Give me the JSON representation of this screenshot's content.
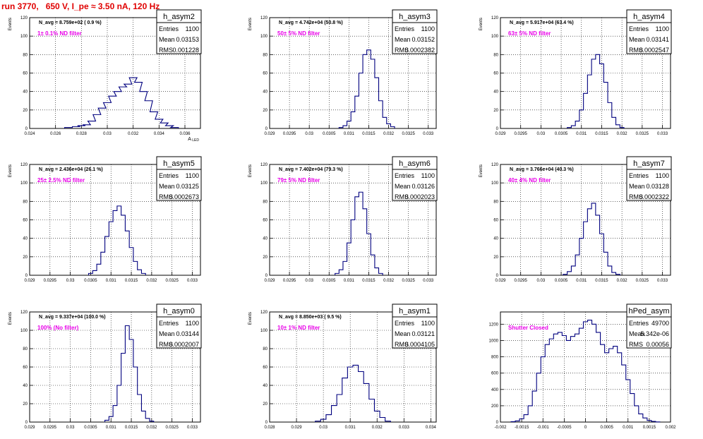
{
  "title": "run 3770,   650 V, I_pe ≈ 3.50 nA, 120 Hz",
  "colors": {
    "title": "#e00000",
    "hist": "#00007f",
    "annotation": "#e800e8",
    "grid": "#000000"
  },
  "chart_data": [
    {
      "type": "bar",
      "name": "h_asym2",
      "stats": {
        "entries": "1100",
        "mean": "0.03153",
        "rms": "0.001228"
      },
      "navg": "N_avg = 8.759e+02 ( 0.9 %)",
      "filter": "1± 0.1% ND filter",
      "xlabel": "A_LED",
      "ylabel": "Events",
      "xlim": [
        0.024,
        0.0372
      ],
      "ylim": [
        0,
        120
      ],
      "xticks": [
        0.024,
        0.026,
        0.028,
        0.03,
        0.032,
        0.034,
        0.036
      ],
      "xticklabels": [
        "0.024",
        "0.026",
        "0.028",
        "0.03",
        "0.032",
        "0.034",
        "0.036"
      ],
      "yticks": [
        0,
        20,
        40,
        60,
        80,
        100,
        120
      ],
      "bins": [
        [
          0.027,
          1
        ],
        [
          0.0276,
          2
        ],
        [
          0.028,
          3
        ],
        [
          0.0284,
          4
        ],
        [
          0.0288,
          8
        ],
        [
          0.0292,
          15
        ],
        [
          0.0296,
          22
        ],
        [
          0.03,
          28
        ],
        [
          0.0304,
          35
        ],
        [
          0.0308,
          40
        ],
        [
          0.0312,
          45
        ],
        [
          0.0316,
          48
        ],
        [
          0.032,
          55
        ],
        [
          0.0324,
          50
        ],
        [
          0.0328,
          40
        ],
        [
          0.0332,
          30
        ],
        [
          0.0336,
          18
        ],
        [
          0.034,
          10
        ],
        [
          0.0344,
          6
        ],
        [
          0.0348,
          3
        ],
        [
          0.0352,
          1
        ]
      ]
    },
    {
      "type": "bar",
      "name": "h_asym3",
      "stats": {
        "entries": "1100",
        "mean": "0.03152",
        "rms": "0.0002382"
      },
      "navg": "N_avg = 4.742e+04 (50.8 %)",
      "filter": "50± 5% ND filter",
      "xlabel": "",
      "ylabel": "Events",
      "xlim": [
        0.029,
        0.0332
      ],
      "ylim": [
        0,
        120
      ],
      "xticks": [
        0.029,
        0.0295,
        0.03,
        0.0305,
        0.031,
        0.0315,
        0.032,
        0.0325,
        0.033
      ],
      "xticklabels": [
        "0.029",
        "0.0295",
        "0.03",
        "0.0305",
        "0.031",
        "0.0315",
        "0.032",
        "0.0325",
        "0.033"
      ],
      "yticks": [
        0,
        20,
        40,
        60,
        80,
        100,
        120
      ],
      "bins": [
        [
          0.0308,
          1
        ],
        [
          0.0309,
          3
        ],
        [
          0.031,
          8
        ],
        [
          0.0311,
          18
        ],
        [
          0.0312,
          35
        ],
        [
          0.0313,
          60
        ],
        [
          0.0314,
          80
        ],
        [
          0.0315,
          85
        ],
        [
          0.0316,
          75
        ],
        [
          0.0317,
          55
        ],
        [
          0.0318,
          30
        ],
        [
          0.0319,
          12
        ],
        [
          0.032,
          5
        ],
        [
          0.0321,
          2
        ]
      ]
    },
    {
      "type": "bar",
      "name": "h_asym4",
      "stats": {
        "entries": "1100",
        "mean": "0.03141",
        "rms": "0.0002547"
      },
      "navg": "N_avg = 5.917e+04 (63.4 %)",
      "filter": "63± 5% ND filter",
      "xlabel": "",
      "ylabel": "Events",
      "xlim": [
        0.029,
        0.0332
      ],
      "ylim": [
        0,
        120
      ],
      "xticks": [
        0.029,
        0.0295,
        0.03,
        0.0305,
        0.031,
        0.0315,
        0.032,
        0.0325,
        0.033
      ],
      "xticklabels": [
        "0.029",
        "0.0295",
        "0.03",
        "0.0305",
        "0.031",
        "0.0315",
        "0.032",
        "0.0325",
        "0.033"
      ],
      "yticks": [
        0,
        20,
        40,
        60,
        80,
        100,
        120
      ],
      "bins": [
        [
          0.0307,
          1
        ],
        [
          0.0308,
          3
        ],
        [
          0.0309,
          8
        ],
        [
          0.031,
          20
        ],
        [
          0.0311,
          38
        ],
        [
          0.0312,
          58
        ],
        [
          0.0313,
          75
        ],
        [
          0.0314,
          80
        ],
        [
          0.0315,
          70
        ],
        [
          0.0316,
          50
        ],
        [
          0.0317,
          28
        ],
        [
          0.0318,
          12
        ],
        [
          0.0319,
          4
        ],
        [
          0.032,
          1
        ]
      ]
    },
    {
      "type": "bar",
      "name": "h_asym5",
      "stats": {
        "entries": "1100",
        "mean": "0.03125",
        "rms": "0.0002673"
      },
      "navg": "N_avg = 2.436e+04 (26.1 %)",
      "filter": "25± 2.5% ND filter",
      "xlabel": "",
      "ylabel": "Events",
      "xlim": [
        0.029,
        0.0332
      ],
      "ylim": [
        0,
        120
      ],
      "xticks": [
        0.029,
        0.0295,
        0.03,
        0.0305,
        0.031,
        0.0315,
        0.032,
        0.0325,
        0.033
      ],
      "xticklabels": [
        "0.029",
        "0.0295",
        "0.03",
        "0.0305",
        "0.031",
        "0.0315",
        "0.032",
        "0.0325",
        "0.033"
      ],
      "yticks": [
        0,
        20,
        40,
        60,
        80,
        100,
        120
      ],
      "bins": [
        [
          0.0305,
          2
        ],
        [
          0.0306,
          5
        ],
        [
          0.0307,
          12
        ],
        [
          0.0308,
          25
        ],
        [
          0.0309,
          42
        ],
        [
          0.031,
          58
        ],
        [
          0.0311,
          70
        ],
        [
          0.0312,
          75
        ],
        [
          0.0313,
          65
        ],
        [
          0.0314,
          48
        ],
        [
          0.0315,
          30
        ],
        [
          0.0316,
          15
        ],
        [
          0.0317,
          6
        ],
        [
          0.0318,
          2
        ]
      ]
    },
    {
      "type": "bar",
      "name": "h_asym6",
      "stats": {
        "entries": "1100",
        "mean": "0.03126",
        "rms": "0.0002023"
      },
      "navg": "N_avg = 7.402e+04 (79.3 %)",
      "filter": "79± 5% ND filter",
      "xlabel": "",
      "ylabel": "Events",
      "xlim": [
        0.029,
        0.0332
      ],
      "ylim": [
        0,
        120
      ],
      "xticks": [
        0.029,
        0.0295,
        0.03,
        0.0305,
        0.031,
        0.0315,
        0.032,
        0.0325,
        0.033
      ],
      "xticklabels": [
        "0.029",
        "0.0295",
        "0.03",
        "0.0305",
        "0.031",
        "0.0315",
        "0.032",
        "0.0325",
        "0.033"
      ],
      "yticks": [
        0,
        20,
        40,
        60,
        80,
        100,
        120
      ],
      "bins": [
        [
          0.0307,
          2
        ],
        [
          0.0308,
          6
        ],
        [
          0.0309,
          15
        ],
        [
          0.031,
          35
        ],
        [
          0.0311,
          60
        ],
        [
          0.0312,
          85
        ],
        [
          0.0313,
          90
        ],
        [
          0.0314,
          72
        ],
        [
          0.0315,
          45
        ],
        [
          0.0316,
          22
        ],
        [
          0.0317,
          8
        ],
        [
          0.0318,
          2
        ]
      ]
    },
    {
      "type": "bar",
      "name": "h_asym7",
      "stats": {
        "entries": "1100",
        "mean": "0.03128",
        "rms": "0.0002322"
      },
      "navg": "N_avg = 3.766e+04 (40.3 %)",
      "filter": "40± 4% ND filter",
      "xlabel": "",
      "ylabel": "Events",
      "xlim": [
        0.029,
        0.0332
      ],
      "ylim": [
        0,
        120
      ],
      "xticks": [
        0.029,
        0.0295,
        0.03,
        0.0305,
        0.031,
        0.0315,
        0.032,
        0.0325,
        0.033
      ],
      "xticklabels": [
        "0.029",
        "0.0295",
        "0.03",
        "0.0305",
        "0.031",
        "0.0315",
        "0.032",
        "0.0325",
        "0.033"
      ],
      "yticks": [
        0,
        20,
        40,
        60,
        80,
        100,
        120
      ],
      "bins": [
        [
          0.0306,
          1
        ],
        [
          0.0307,
          4
        ],
        [
          0.0308,
          10
        ],
        [
          0.0309,
          22
        ],
        [
          0.031,
          40
        ],
        [
          0.0311,
          58
        ],
        [
          0.0312,
          72
        ],
        [
          0.0313,
          78
        ],
        [
          0.0314,
          65
        ],
        [
          0.0315,
          45
        ],
        [
          0.0316,
          25
        ],
        [
          0.0317,
          10
        ],
        [
          0.0318,
          3
        ],
        [
          0.0319,
          1
        ]
      ]
    },
    {
      "type": "bar",
      "name": "h_asym0",
      "stats": {
        "entries": "1100",
        "mean": "0.03144",
        "rms": "0.0002007"
      },
      "navg": "N_avg = 9.337e+04 (100.0 %)",
      "filter": "100% (No filter)",
      "xlabel": "",
      "ylabel": "Events",
      "xlim": [
        0.029,
        0.0332
      ],
      "ylim": [
        0,
        120
      ],
      "xticks": [
        0.029,
        0.0295,
        0.03,
        0.0305,
        0.031,
        0.0315,
        0.032,
        0.0325,
        0.033
      ],
      "xticklabels": [
        "0.029",
        "0.0295",
        "0.03",
        "0.0305",
        "0.031",
        "0.0315",
        "0.032",
        "0.0325",
        "0.033"
      ],
      "yticks": [
        0,
        20,
        40,
        60,
        80,
        100,
        120
      ],
      "bins": [
        [
          0.0309,
          2
        ],
        [
          0.031,
          6
        ],
        [
          0.0311,
          18
        ],
        [
          0.0312,
          40
        ],
        [
          0.0313,
          75
        ],
        [
          0.0314,
          105
        ],
        [
          0.0315,
          90
        ],
        [
          0.0316,
          60
        ],
        [
          0.0317,
          30
        ],
        [
          0.0318,
          12
        ],
        [
          0.0319,
          4
        ],
        [
          0.032,
          1
        ]
      ]
    },
    {
      "type": "bar",
      "name": "h_asym1",
      "stats": {
        "entries": "1100",
        "mean": "0.03121",
        "rms": "0.0004105"
      },
      "navg": "N_avg = 8.850e+03 ( 9.5 %)",
      "filter": "10± 1% ND filter",
      "xlabel": "",
      "ylabel": "Events",
      "xlim": [
        0.028,
        0.0342
      ],
      "ylim": [
        0,
        120
      ],
      "xticks": [
        0.028,
        0.029,
        0.03,
        0.031,
        0.032,
        0.033,
        0.034
      ],
      "xticklabels": [
        "0.028",
        "0.029",
        "0.03",
        "0.031",
        "0.032",
        "0.033",
        "0.034"
      ],
      "yticks": [
        0,
        20,
        40,
        60,
        80,
        100,
        120
      ],
      "bins": [
        [
          0.0298,
          1
        ],
        [
          0.03,
          3
        ],
        [
          0.0302,
          8
        ],
        [
          0.0304,
          18
        ],
        [
          0.0306,
          30
        ],
        [
          0.0308,
          48
        ],
        [
          0.031,
          60
        ],
        [
          0.0312,
          62
        ],
        [
          0.0314,
          55
        ],
        [
          0.0316,
          42
        ],
        [
          0.0318,
          25
        ],
        [
          0.032,
          12
        ],
        [
          0.0322,
          5
        ],
        [
          0.0324,
          1
        ]
      ]
    },
    {
      "type": "bar",
      "name": "hPed_asym",
      "stats": {
        "entries": "49700",
        "mean": "5.342e-06",
        "rms": "0.00056"
      },
      "navg": "",
      "filter": "Shutter Closed",
      "xlabel": "",
      "ylabel": "",
      "xlim": [
        -0.002,
        0.002
      ],
      "ylim": [
        0,
        1350
      ],
      "xticks": [
        -0.002,
        -0.0015,
        -0.001,
        -0.0005,
        0,
        0.0005,
        0.001,
        0.0015,
        0.002
      ],
      "xticklabels": [
        "-0.002",
        "-0.0015",
        "-0.001",
        "-0.0005",
        "0",
        "0.0005",
        "0.001",
        "0.0015",
        "0.002"
      ],
      "yticks": [
        0,
        200,
        400,
        600,
        800,
        1000,
        1200
      ],
      "bins": [
        [
          -0.0017,
          5
        ],
        [
          -0.0016,
          15
        ],
        [
          -0.0015,
          40
        ],
        [
          -0.0014,
          90
        ],
        [
          -0.0013,
          200
        ],
        [
          -0.0012,
          380
        ],
        [
          -0.0011,
          600
        ],
        [
          -0.001,
          800
        ],
        [
          -0.0009,
          950
        ],
        [
          -0.0008,
          1020
        ],
        [
          -0.0007,
          1080
        ],
        [
          -0.0006,
          1100
        ],
        [
          -0.0005,
          1060
        ],
        [
          -0.0004,
          1000
        ],
        [
          -0.0003,
          1050
        ],
        [
          -0.0002,
          1080
        ],
        [
          -0.0001,
          1150
        ],
        [
          0.0,
          1230
        ],
        [
          0.0001,
          1250
        ],
        [
          0.0002,
          1200
        ],
        [
          0.0003,
          1100
        ],
        [
          0.0004,
          950
        ],
        [
          0.0005,
          850
        ],
        [
          0.0006,
          900
        ],
        [
          0.0007,
          930
        ],
        [
          0.0008,
          850
        ],
        [
          0.0009,
          700
        ],
        [
          0.001,
          520
        ],
        [
          0.0011,
          350
        ],
        [
          0.0012,
          200
        ],
        [
          0.0013,
          100
        ],
        [
          0.0014,
          50
        ],
        [
          0.0015,
          20
        ],
        [
          0.0016,
          8
        ],
        [
          0.0017,
          2
        ]
      ]
    }
  ]
}
